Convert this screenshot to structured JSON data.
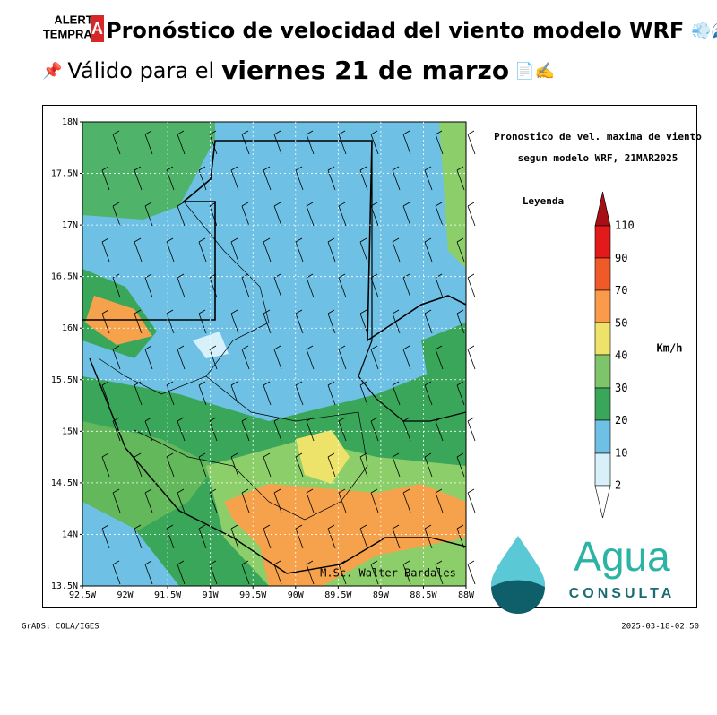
{
  "header": {
    "logo_top": "ALERT",
    "logo_bottom": "TEMPRAN",
    "logo_badge": "A",
    "title": "Pronóstico de velocidad del viento modelo WRF",
    "title_icons": "💨🌊",
    "pin": "📌",
    "valid_prefix": "Válido para el",
    "valid_date": "viernes 21 de marzo",
    "date_icons": "📄✍️"
  },
  "map": {
    "title_line1": "Pronostico de vel. maxima de viento",
    "title_line2": "segun modelo WRF, 21MAR2025",
    "lat_labels": [
      "18N",
      "17.5N",
      "17N",
      "16.5N",
      "16N",
      "15.5N",
      "15N",
      "14.5N",
      "14N",
      "13.5N"
    ],
    "lon_labels": [
      "92.5W",
      "92W",
      "91.5W",
      "91W",
      "90.5W",
      "90W",
      "89.5W",
      "89W",
      "88.5W",
      "88W"
    ],
    "author": "M.Sc. Walter Bardales",
    "legend": {
      "title": "Leyenda",
      "labels": [
        "110",
        "90",
        "70",
        "50",
        "40",
        "30",
        "20",
        "10",
        "2"
      ],
      "unit": "Km/h"
    },
    "logo": {
      "word": "Agua",
      "subword": "CONSULTA"
    }
  },
  "footer": {
    "left": "GrADS: COLA/IGES",
    "right": "2025-03-18-02:50"
  }
}
